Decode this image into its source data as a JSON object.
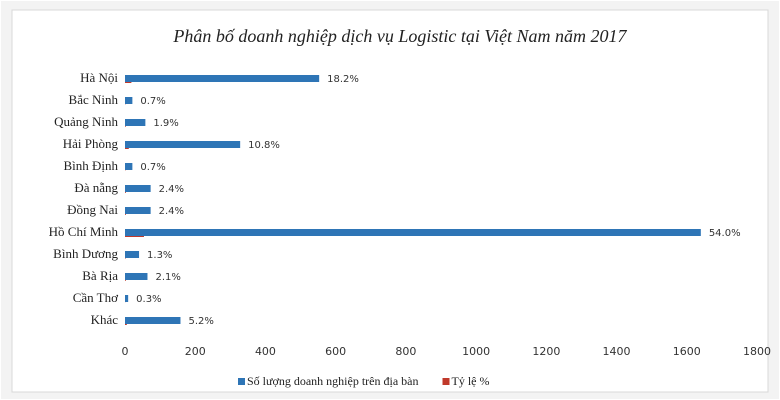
{
  "chart_data": {
    "type": "bar",
    "orientation": "horizontal",
    "title": "Phân bố doanh nghiệp dịch vụ Logistic tại Việt Nam năm 2017",
    "categories": [
      "Hà Nội",
      "Bắc Ninh",
      "Quảng Ninh",
      "Hải Phòng",
      "Bình Định",
      "Đà nẵng",
      "Đồng Nai",
      "Hồ Chí Minh",
      "Bình Dương",
      "Bà Rịa",
      "Cần Thơ",
      "Khác"
    ],
    "series": [
      {
        "name": "Số lượng doanh nghiệp trên địa bàn",
        "color": "#2e75b6",
        "values": [
          553,
          21,
          58,
          328,
          21,
          73,
          73,
          1640,
          40,
          64,
          9,
          158
        ]
      },
      {
        "name": "Tỷ lệ %",
        "color": "#c0392b",
        "values": [
          18.2,
          0.7,
          1.9,
          10.8,
          0.7,
          2.4,
          2.4,
          54.0,
          1.3,
          2.1,
          0.3,
          5.2
        ],
        "value_labels": [
          "18.2%",
          "0.7%",
          "1.9%",
          "10.8%",
          "0.7%",
          "2.4%",
          "2.4%",
          "54.0%",
          "1.3%",
          "2.1%",
          "0.3%",
          "5.2%"
        ]
      }
    ],
    "xlim": [
      0,
      1800
    ],
    "xticks": [
      0,
      200,
      400,
      600,
      800,
      1000,
      1200,
      1400,
      1600,
      1800
    ],
    "grid": false,
    "legend": "bottom"
  }
}
